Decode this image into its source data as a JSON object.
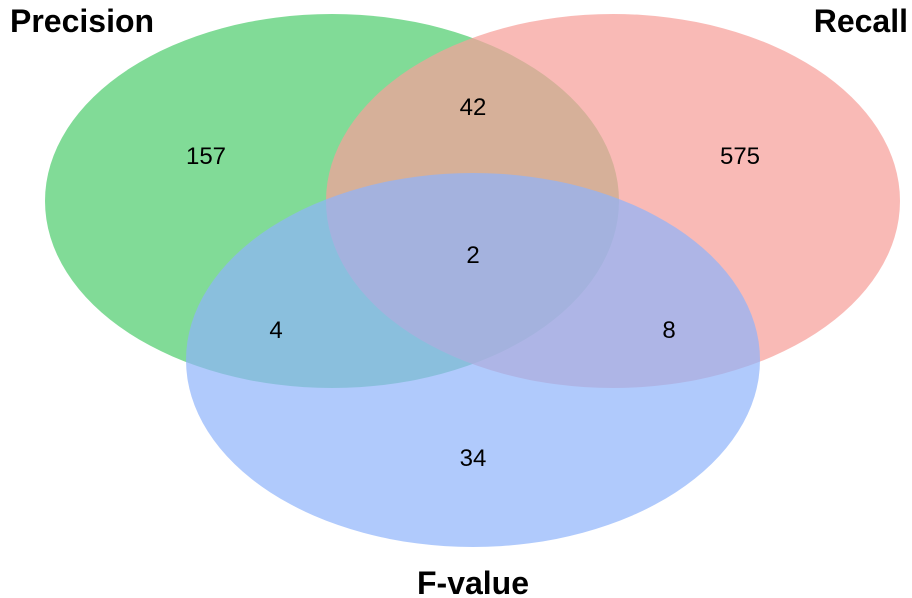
{
  "sets": [
    {
      "id": "precision",
      "label": "Precision",
      "color": "#5ed17a"
    },
    {
      "id": "recall",
      "label": "Recall",
      "color": "#f7a09a"
    },
    {
      "id": "fvalue",
      "label": "F-value",
      "color": "#8fb4fb"
    }
  ],
  "regions": {
    "precision_only": "157",
    "recall_only": "575",
    "fvalue_only": "34",
    "precision_recall": "42",
    "precision_fvalue": "4",
    "recall_fvalue": "8",
    "all_three": "2"
  }
}
